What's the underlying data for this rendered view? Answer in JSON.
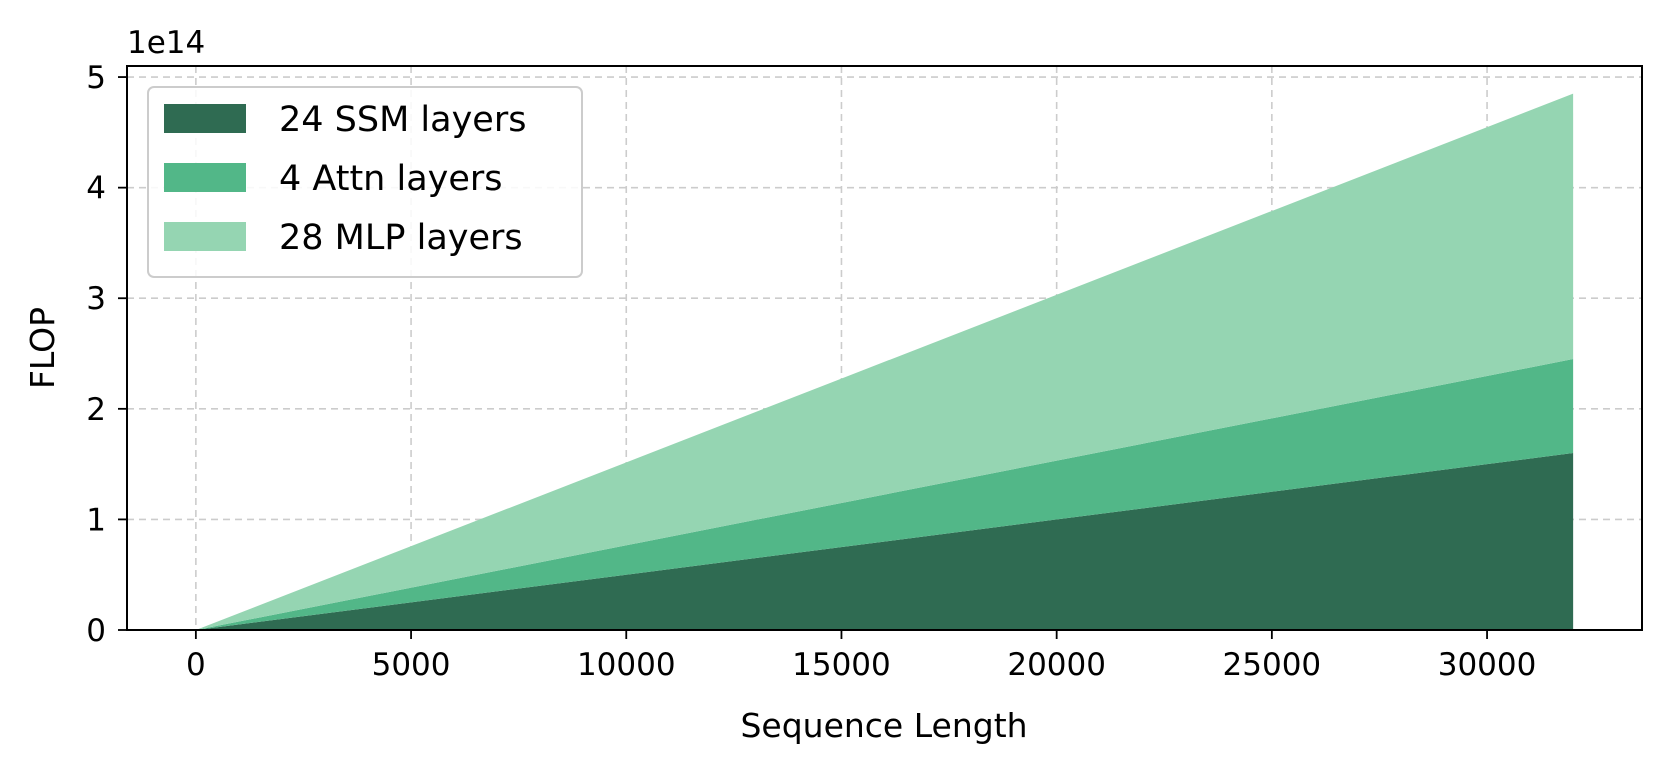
{
  "chart_data": {
    "type": "area",
    "stacked": true,
    "title": "",
    "xlabel": "Sequence Length",
    "ylabel": "FLOP",
    "y_offset_text": "1e14",
    "y_multiplier": 100000000000000.0,
    "xlim": [
      -1600,
      33600
    ],
    "ylim": [
      0,
      5.1
    ],
    "xticks": [
      0,
      5000,
      10000,
      15000,
      20000,
      25000,
      30000
    ],
    "xtick_labels": [
      "0",
      "5000",
      "10000",
      "15000",
      "20000",
      "25000",
      "30000"
    ],
    "yticks": [
      0,
      1,
      2,
      3,
      4,
      5
    ],
    "ytick_labels": [
      "0",
      "1",
      "2",
      "3",
      "4",
      "5"
    ],
    "grid": true,
    "legend_position": "upper-left",
    "x": [
      0,
      32000
    ],
    "series": [
      {
        "name": "24 SSM layers",
        "values": [
          0,
          1.6
        ],
        "color": "#2f6b52"
      },
      {
        "name": "4 Attn layers",
        "values": [
          0,
          0.85
        ],
        "color": "#52b788"
      },
      {
        "name": "28 MLP layers",
        "values": [
          0,
          2.4
        ],
        "color": "#95d5b2"
      }
    ]
  }
}
